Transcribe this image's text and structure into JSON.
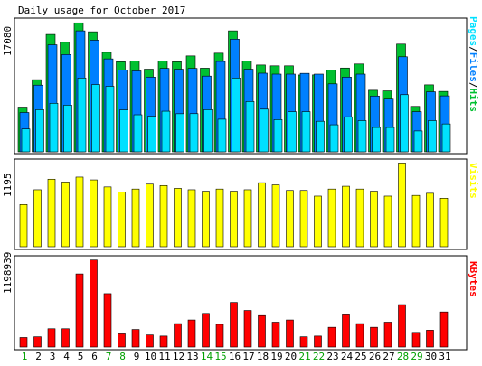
{
  "title": "Daily usage for October 2017",
  "colors": {
    "background": "#ffffff",
    "panel_border": "#000000",
    "hits": "#00c030",
    "files": "#0080ff",
    "pages": "#00e0ff",
    "visits": "#ffff00",
    "kbytes": "#ff0000",
    "weekday_label": "#000000",
    "weekend_label": "#00a000"
  },
  "chart_data": [
    {
      "type": "bar",
      "title": "Daily usage for October 2017",
      "categories": [
        "1",
        "2",
        "3",
        "4",
        "5",
        "6",
        "7",
        "8",
        "9",
        "10",
        "11",
        "12",
        "13",
        "14",
        "15",
        "16",
        "17",
        "18",
        "19",
        "20",
        "21",
        "22",
        "23",
        "24",
        "25",
        "26",
        "27",
        "28",
        "29",
        "30",
        "31"
      ],
      "weekend_days": [
        "1",
        "7",
        "8",
        "14",
        "15",
        "21",
        "22",
        "28",
        "29"
      ],
      "legend": [
        {
          "label": "Pages",
          "color": "#00e0ff"
        },
        {
          "label": "/",
          "color": "#000000"
        },
        {
          "label": "Files",
          "color": "#0080ff"
        },
        {
          "label": "/",
          "color": "#000000"
        },
        {
          "label": "Hits",
          "color": "#00c030"
        }
      ],
      "y_max_label": "17080",
      "ylim": [
        0,
        17080
      ],
      "series": [
        {
          "name": "Hits",
          "color": "#00c030",
          "values": [
            5870,
            9470,
            15410,
            14380,
            16930,
            15760,
            13060,
            11820,
            11930,
            10850,
            11930,
            11820,
            12590,
            10980,
            12950,
            15880,
            11930,
            11400,
            11290,
            11290,
            10090,
            10100,
            10730,
            11000,
            11530,
            8080,
            8000,
            14140,
            5960,
            8790,
            7930
          ]
        },
        {
          "name": "Files",
          "color": "#0080ff",
          "values": [
            5160,
            8750,
            14050,
            12770,
            15880,
            14660,
            12200,
            10730,
            10620,
            9810,
            10950,
            10850,
            10950,
            9940,
            11860,
            14790,
            10850,
            10320,
            10200,
            10200,
            10300,
            10200,
            8920,
            9810,
            10200,
            7320,
            7030,
            12480,
            5270,
            7880,
            7340
          ]
        },
        {
          "name": "Pages",
          "color": "#00e0ff",
          "values": [
            3000,
            5530,
            6370,
            6120,
            9690,
            8830,
            8600,
            5510,
            4860,
            4680,
            5330,
            5000,
            5010,
            5530,
            4280,
            9690,
            6600,
            5600,
            4230,
            5270,
            5270,
            4010,
            3550,
            4600,
            4100,
            3200,
            3200,
            7500,
            2740,
            4100,
            3660
          ]
        }
      ]
    },
    {
      "type": "bar",
      "categories": [
        "1",
        "2",
        "3",
        "4",
        "5",
        "6",
        "7",
        "8",
        "9",
        "10",
        "11",
        "12",
        "13",
        "14",
        "15",
        "16",
        "17",
        "18",
        "19",
        "20",
        "21",
        "22",
        "23",
        "24",
        "25",
        "26",
        "27",
        "28",
        "29",
        "30",
        "31"
      ],
      "legend": [
        {
          "label": "Visits",
          "color": "#ffff00"
        }
      ],
      "y_max_label": "1195",
      "ylim": [
        0,
        1195
      ],
      "series": [
        {
          "name": "Visits",
          "color": "#ffff00",
          "values": [
            600,
            810,
            960,
            920,
            990,
            950,
            850,
            780,
            820,
            890,
            870,
            830,
            810,
            790,
            820,
            790,
            810,
            910,
            880,
            800,
            800,
            720,
            820,
            860,
            820,
            790,
            720,
            1190,
            730,
            760,
            690
          ]
        }
      ]
    },
    {
      "type": "bar",
      "categories": [
        "1",
        "2",
        "3",
        "4",
        "5",
        "6",
        "7",
        "8",
        "9",
        "10",
        "11",
        "12",
        "13",
        "14",
        "15",
        "16",
        "17",
        "18",
        "19",
        "20",
        "21",
        "22",
        "23",
        "24",
        "25",
        "26",
        "27",
        "28",
        "29",
        "30",
        "31"
      ],
      "legend": [
        {
          "label": "KBytes",
          "color": "#ff0000"
        }
      ],
      "y_max_label": "1198939",
      "ylim": [
        0,
        1198939
      ],
      "series": [
        {
          "name": "KBytes",
          "color": "#ff0000",
          "values": [
            130000,
            140000,
            250000,
            250000,
            1000000,
            1190000,
            730000,
            180000,
            240000,
            165000,
            150000,
            320000,
            370000,
            460000,
            310000,
            610000,
            500000,
            430000,
            340000,
            370000,
            140000,
            150000,
            270000,
            440000,
            320000,
            270000,
            340000,
            580000,
            200000,
            230000,
            480000
          ]
        }
      ]
    }
  ]
}
